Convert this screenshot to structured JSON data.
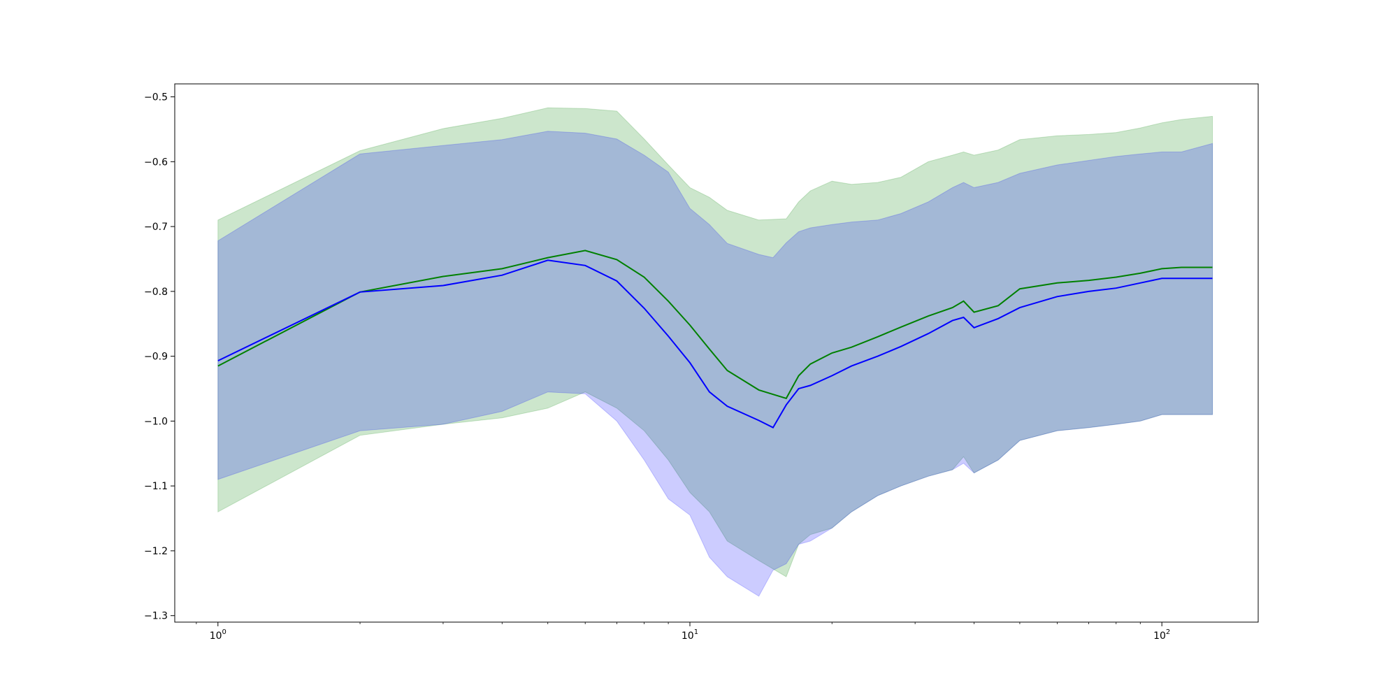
{
  "chart_data": {
    "type": "line",
    "title": "",
    "xlabel": "",
    "ylabel": "",
    "xscale": "log",
    "xlim": [
      0.81,
      160
    ],
    "ylim": [
      -1.31,
      -0.48
    ],
    "grid": false,
    "legend": "none",
    "y_ticks": [
      -0.5,
      -0.6,
      -0.7,
      -0.8,
      -0.9,
      -1.0,
      -1.1,
      -1.2,
      -1.3
    ],
    "y_tick_labels": [
      "−0.5",
      "−0.6",
      "−0.7",
      "−0.8",
      "−0.9",
      "−1.0",
      "−1.1",
      "−1.2",
      "−1.3"
    ],
    "x_ticks": [
      {
        "value": 1,
        "base": "10",
        "exp": "0"
      },
      {
        "value": 10,
        "base": "10",
        "exp": "1"
      },
      {
        "value": 100,
        "base": "10",
        "exp": "2"
      }
    ],
    "series": [
      {
        "color": "#008000",
        "band_color": "#008000",
        "x": [
          1,
          2,
          3,
          4,
          5,
          6,
          7,
          8,
          9,
          10,
          11,
          12,
          14,
          16,
          17,
          18,
          20,
          22,
          25,
          28,
          32,
          36,
          38,
          40,
          45,
          50,
          60,
          70,
          80,
          90,
          100,
          110,
          128
        ],
        "y": [
          -0.915,
          -0.801,
          -0.777,
          -0.765,
          -0.748,
          -0.737,
          -0.751,
          -0.778,
          -0.815,
          -0.852,
          -0.889,
          -0.922,
          -0.952,
          -0.965,
          -0.93,
          -0.912,
          -0.895,
          -0.886,
          -0.87,
          -0.855,
          -0.838,
          -0.825,
          -0.815,
          -0.832,
          -0.822,
          -0.796,
          -0.787,
          -0.783,
          -0.778,
          -0.772,
          -0.765,
          -0.763,
          -0.763
        ],
        "upper": [
          -0.69,
          -0.583,
          -0.549,
          -0.533,
          -0.517,
          -0.518,
          -0.522,
          -0.565,
          -0.605,
          -0.64,
          -0.655,
          -0.675,
          -0.69,
          -0.688,
          -0.662,
          -0.645,
          -0.63,
          -0.635,
          -0.632,
          -0.624,
          -0.6,
          -0.59,
          -0.585,
          -0.59,
          -0.582,
          -0.566,
          -0.56,
          -0.558,
          -0.555,
          -0.548,
          -0.54,
          -0.535,
          -0.53
        ],
        "lower": [
          -1.14,
          -1.022,
          -1.005,
          -0.995,
          -0.98,
          -0.955,
          -0.98,
          -1.015,
          -1.06,
          -1.11,
          -1.14,
          -1.185,
          -1.215,
          -1.24,
          -1.19,
          -1.175,
          -1.165,
          -1.14,
          -1.115,
          -1.1,
          -1.085,
          -1.075,
          -1.055,
          -1.08,
          -1.06,
          -1.03,
          -1.015,
          -1.01,
          -1.005,
          -1.0,
          -0.99,
          -0.99,
          -0.99
        ]
      },
      {
        "color": "#0000ff",
        "band_color": "#0000ff",
        "x": [
          1,
          2,
          3,
          4,
          5,
          6,
          7,
          8,
          9,
          10,
          11,
          12,
          14,
          15,
          16,
          17,
          18,
          20,
          22,
          25,
          28,
          32,
          36,
          38,
          40,
          45,
          50,
          60,
          70,
          80,
          90,
          100,
          110,
          128
        ],
        "y": [
          -0.907,
          -0.801,
          -0.791,
          -0.775,
          -0.752,
          -0.76,
          -0.784,
          -0.826,
          -0.869,
          -0.91,
          -0.955,
          -0.977,
          -0.999,
          -1.01,
          -0.975,
          -0.95,
          -0.945,
          -0.93,
          -0.915,
          -0.9,
          -0.885,
          -0.865,
          -0.845,
          -0.84,
          -0.856,
          -0.842,
          -0.825,
          -0.808,
          -0.8,
          -0.795,
          -0.787,
          -0.78,
          -0.78,
          -0.78
        ],
        "upper": [
          -0.722,
          -0.588,
          -0.575,
          -0.566,
          -0.553,
          -0.556,
          -0.565,
          -0.59,
          -0.616,
          -0.672,
          -0.697,
          -0.726,
          -0.743,
          -0.748,
          -0.725,
          -0.708,
          -0.702,
          -0.697,
          -0.693,
          -0.69,
          -0.68,
          -0.662,
          -0.64,
          -0.632,
          -0.64,
          -0.632,
          -0.618,
          -0.605,
          -0.598,
          -0.592,
          -0.588,
          -0.585,
          -0.585,
          -0.572
        ],
        "lower": [
          -1.09,
          -1.015,
          -1.005,
          -0.985,
          -0.955,
          -0.958,
          -1.0,
          -1.06,
          -1.12,
          -1.145,
          -1.21,
          -1.24,
          -1.27,
          -1.23,
          -1.22,
          -1.19,
          -1.185,
          -1.165,
          -1.14,
          -1.115,
          -1.1,
          -1.085,
          -1.075,
          -1.065,
          -1.08,
          -1.06,
          -1.03,
          -1.015,
          -1.01,
          -1.005,
          -1.0,
          -0.99,
          -0.99,
          -0.99
        ]
      }
    ]
  }
}
